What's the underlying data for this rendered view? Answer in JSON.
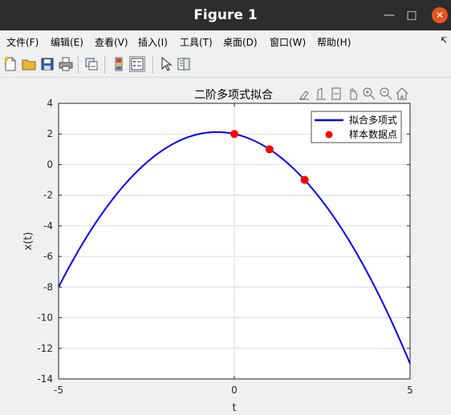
{
  "window": {
    "title": "Figure 1"
  },
  "menu": [
    "文件(F)",
    "编辑(E)",
    "查看(V)",
    "插入(I)",
    "工具(T)",
    "桌面(D)",
    "窗口(W)",
    "帮助(H)"
  ],
  "chart_data": {
    "type": "line",
    "title": "二阶多项式拟合",
    "xlabel": "t",
    "ylabel": "x(t)",
    "xlim": [
      -5,
      5
    ],
    "ylim": [
      -14,
      4
    ],
    "xticks": [
      -5,
      0,
      5
    ],
    "yticks": [
      4,
      2,
      0,
      -2,
      -4,
      -6,
      -8,
      -10,
      -12,
      -14
    ],
    "grid": true,
    "legend_position": "top-right",
    "series": [
      {
        "name": "拟合多项式",
        "kind": "line",
        "color": "#0000ff",
        "polynomial": {
          "a": -0.5,
          "b": -0.5,
          "c": 2
        },
        "x": [
          -5,
          -4,
          -3,
          -2,
          -1,
          0,
          1,
          2,
          3,
          4,
          5
        ],
        "y": [
          -8,
          -4,
          -1,
          1,
          2,
          2,
          1,
          -1,
          -4,
          -8,
          -13
        ]
      },
      {
        "name": "样本数据点",
        "kind": "scatter",
        "color": "#ff0000",
        "x": [
          0,
          1,
          2
        ],
        "y": [
          2,
          1,
          -1
        ]
      }
    ]
  }
}
